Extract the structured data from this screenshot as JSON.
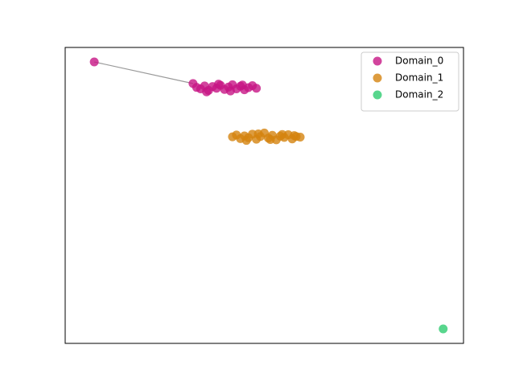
{
  "chart_data": {
    "type": "scatter",
    "xlim": [
      0,
      1
    ],
    "ylim": [
      0,
      1
    ],
    "legend": "upper right",
    "series": [
      {
        "name": "Domain_0",
        "color": "#c71585",
        "x": [
          0.073,
          0.321,
          0.33,
          0.34,
          0.35,
          0.36,
          0.37,
          0.38,
          0.39,
          0.4,
          0.41,
          0.42,
          0.43,
          0.44,
          0.45,
          0.46,
          0.47,
          0.48,
          0.355,
          0.385,
          0.415,
          0.445
        ],
        "values": [
          0.951,
          0.878,
          0.865,
          0.86,
          0.87,
          0.855,
          0.868,
          0.862,
          0.872,
          0.858,
          0.866,
          0.874,
          0.86,
          0.869,
          0.857,
          0.864,
          0.871,
          0.862,
          0.85,
          0.876,
          0.853,
          0.873
        ]
      },
      {
        "name": "Domain_1",
        "color": "#d4830f",
        "x": [
          0.42,
          0.43,
          0.44,
          0.45,
          0.46,
          0.47,
          0.48,
          0.49,
          0.5,
          0.51,
          0.52,
          0.53,
          0.54,
          0.55,
          0.56,
          0.57,
          0.58,
          0.59,
          0.455,
          0.485,
          0.515,
          0.545,
          0.575
        ],
        "values": [
          0.698,
          0.704,
          0.692,
          0.701,
          0.695,
          0.707,
          0.69,
          0.699,
          0.711,
          0.694,
          0.703,
          0.688,
          0.7,
          0.696,
          0.705,
          0.691,
          0.699,
          0.697,
          0.686,
          0.708,
          0.689,
          0.706,
          0.702
        ]
      },
      {
        "name": "Domain_2",
        "color": "#2ecc71",
        "x": [
          0.949
        ],
        "values": [
          0.049
        ]
      }
    ]
  }
}
